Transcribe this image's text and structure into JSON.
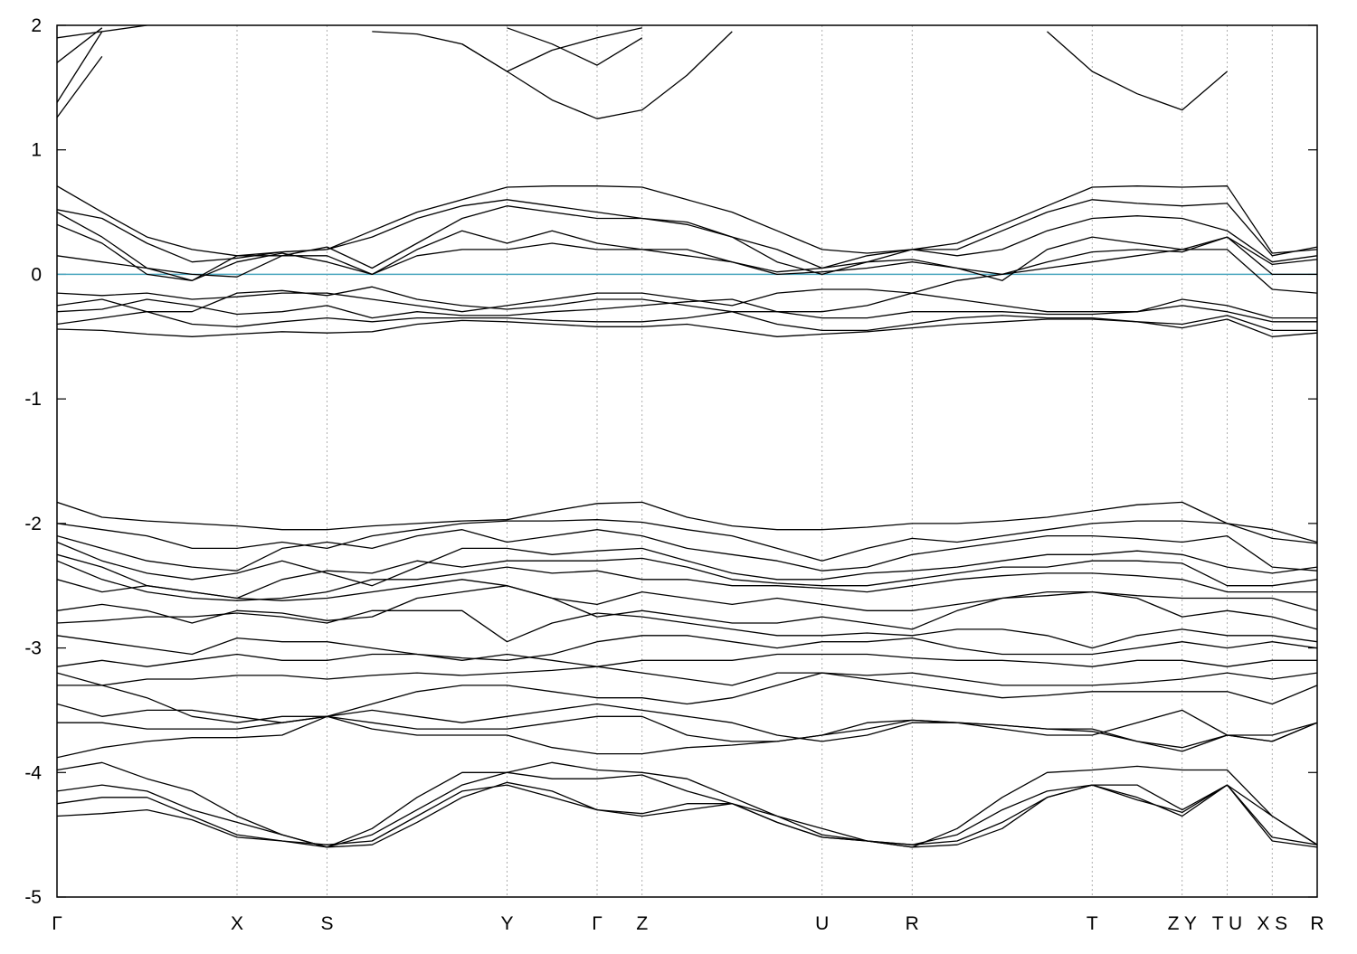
{
  "chart_data": {
    "type": "line",
    "x": [
      0,
      0.5,
      1,
      1.5,
      2,
      2.5,
      3,
      3.5,
      4,
      4.5,
      5,
      5.5,
      6,
      6.5,
      7,
      7.5,
      8,
      8.5,
      9,
      9.5,
      10,
      10.5,
      11,
      11.5,
      12,
      12.5,
      13,
      13.5,
      14
    ],
    "xlim": [
      0,
      14
    ],
    "xticks": [
      {
        "value": 0,
        "label": "Γ"
      },
      {
        "value": 2,
        "label": "X"
      },
      {
        "value": 3,
        "label": "S"
      },
      {
        "value": 5,
        "label": "Y"
      },
      {
        "value": 6,
        "label": "Γ"
      },
      {
        "value": 6.5,
        "label": "Z"
      },
      {
        "value": 8.5,
        "label": "U"
      },
      {
        "value": 9.5,
        "label": "R"
      },
      {
        "value": 11.5,
        "label": "T"
      },
      {
        "value": 12.5,
        "label": "Z Y"
      },
      {
        "value": 13,
        "label": "T U"
      },
      {
        "value": 13.5,
        "label": "X S"
      },
      {
        "value": 14,
        "label": "R"
      }
    ],
    "ylim": [
      -5,
      2
    ],
    "yticks": [
      -5,
      -4,
      -3,
      -2,
      -1,
      0,
      1,
      2
    ],
    "grid": true,
    "color": "#000000",
    "reference_line": {
      "value": 0,
      "color": "#4aa6bf"
    },
    "series": [
      {
        "values": [
          1.26,
          1.75,
          null,
          null,
          null,
          null,
          null,
          null,
          null,
          1.85,
          1.63,
          1.4,
          1.25,
          1.32,
          1.6,
          1.95,
          null,
          null,
          null,
          null,
          null,
          null,
          1.95,
          1.63,
          1.45,
          1.32,
          1.63,
          null,
          null
        ]
      },
      {
        "values": [
          1.38,
          1.95,
          null,
          null,
          null,
          null,
          null,
          1.95,
          1.93,
          1.85,
          1.63,
          1.8,
          1.9,
          1.98,
          null,
          null,
          null,
          null,
          null,
          null,
          null,
          null,
          null,
          null,
          null,
          null,
          null,
          null,
          null
        ]
      },
      {
        "values": [
          1.7,
          1.98,
          null,
          null,
          null,
          null,
          null,
          null,
          null,
          null,
          1.98,
          1.85,
          1.68,
          1.9,
          null,
          null,
          null,
          null,
          null,
          null,
          null,
          null,
          null,
          null,
          null,
          null,
          null,
          null,
          null
        ]
      },
      {
        "values": [
          1.9,
          1.95,
          2,
          null,
          null,
          null,
          null,
          null,
          null,
          null,
          null,
          null,
          null,
          null,
          null,
          null,
          null,
          null,
          null,
          null,
          null,
          null,
          null,
          null,
          null,
          null,
          null,
          null,
          null
        ]
      },
      {
        "values": [
          0.71,
          0.5,
          0.3,
          0.2,
          0.15,
          0.18,
          0.2,
          0.35,
          0.5,
          0.6,
          0.7,
          0.71,
          0.71,
          0.7,
          0.6,
          0.5,
          0.35,
          0.2,
          0.17,
          0.2,
          0.25,
          0.4,
          0.55,
          0.7,
          0.71,
          0.7,
          0.71,
          0.17,
          0.2
        ]
      },
      {
        "values": [
          0.52,
          0.45,
          0.25,
          0.1,
          0.13,
          0.18,
          0.2,
          0.3,
          0.45,
          0.55,
          0.6,
          0.55,
          0.5,
          0.45,
          0.4,
          0.3,
          0.2,
          0.05,
          0.15,
          0.2,
          0.2,
          0.35,
          0.5,
          0.6,
          0.57,
          0.55,
          0.57,
          0.15,
          0.22
        ]
      },
      {
        "values": [
          0.5,
          0.3,
          0.05,
          -0.05,
          0.15,
          0.15,
          0.22,
          0.05,
          0.25,
          0.45,
          0.55,
          0.5,
          0.45,
          0.45,
          0.42,
          0.3,
          0.1,
          0,
          0.1,
          0.2,
          0.15,
          0.2,
          0.35,
          0.45,
          0.47,
          0.45,
          0.35,
          0.1,
          0.15
        ]
      },
      {
        "values": [
          0.4,
          0.25,
          0,
          -0.05,
          0.1,
          0.17,
          0.1,
          0,
          0.2,
          0.35,
          0.25,
          0.35,
          0.25,
          0.2,
          0.2,
          0.1,
          0.02,
          0.05,
          0.1,
          0.12,
          0.05,
          -0.05,
          0.2,
          0.3,
          0.25,
          0.2,
          0.3,
          0.08,
          0.12
        ]
      },
      {
        "values": [
          0.15,
          0.1,
          0.05,
          0,
          -0.02,
          0.15,
          0.15,
          0,
          0.15,
          0.2,
          0.2,
          0.25,
          0.2,
          0.2,
          0.15,
          0.1,
          0,
          0.02,
          0.05,
          0.1,
          0.05,
          0,
          0.1,
          0.18,
          0.2,
          0.18,
          0.3,
          0,
          0
        ]
      },
      {
        "values": [
          -0.15,
          -0.17,
          -0.15,
          -0.2,
          -0.18,
          -0.15,
          -0.15,
          -0.2,
          -0.25,
          -0.3,
          -0.25,
          -0.2,
          -0.15,
          -0.15,
          -0.2,
          -0.25,
          -0.15,
          -0.12,
          -0.12,
          -0.15,
          -0.05,
          0,
          0.05,
          0.1,
          0.15,
          0.2,
          0.2,
          -0.12,
          -0.15
        ]
      },
      {
        "values": [
          -0.25,
          -0.2,
          -0.3,
          -0.3,
          -0.15,
          -0.13,
          -0.17,
          -0.1,
          -0.2,
          -0.25,
          -0.28,
          -0.25,
          -0.2,
          -0.2,
          -0.25,
          -0.3,
          -0.3,
          -0.3,
          -0.25,
          -0.15,
          -0.2,
          -0.25,
          -0.3,
          -0.3,
          -0.3,
          -0.2,
          -0.25,
          -0.35,
          -0.35
        ]
      },
      {
        "values": [
          -0.3,
          -0.28,
          -0.2,
          -0.25,
          -0.32,
          -0.3,
          -0.25,
          -0.35,
          -0.3,
          -0.33,
          -0.33,
          -0.3,
          -0.28,
          -0.25,
          -0.22,
          -0.2,
          -0.3,
          -0.35,
          -0.35,
          -0.3,
          -0.3,
          -0.3,
          -0.32,
          -0.32,
          -0.3,
          -0.25,
          -0.3,
          -0.38,
          -0.38
        ]
      },
      {
        "values": [
          -0.4,
          -0.35,
          -0.3,
          -0.4,
          -0.42,
          -0.38,
          -0.35,
          -0.38,
          -0.35,
          -0.35,
          -0.35,
          -0.37,
          -0.38,
          -0.38,
          -0.35,
          -0.3,
          -0.4,
          -0.45,
          -0.45,
          -0.4,
          -0.35,
          -0.33,
          -0.35,
          -0.35,
          -0.38,
          -0.4,
          -0.33,
          -0.45,
          -0.45
        ]
      },
      {
        "values": [
          -0.44,
          -0.45,
          -0.48,
          -0.5,
          -0.48,
          -0.46,
          -0.47,
          -0.46,
          -0.4,
          -0.37,
          -0.38,
          -0.4,
          -0.42,
          -0.42,
          -0.4,
          -0.45,
          -0.5,
          -0.48,
          -0.46,
          -0.43,
          -0.4,
          -0.38,
          -0.36,
          -0.36,
          -0.38,
          -0.43,
          -0.36,
          -0.5,
          -0.47
        ]
      },
      {
        "values": [
          -1.83,
          -1.95,
          -1.98,
          -2,
          -2.02,
          -2.05,
          -2.05,
          -2.02,
          -2,
          -1.98,
          -1.97,
          -1.9,
          -1.84,
          -1.83,
          -1.95,
          -2.02,
          -2.05,
          -2.05,
          -2.03,
          -2,
          -2,
          -1.98,
          -1.95,
          -1.9,
          -1.85,
          -1.83,
          -2,
          -2.05,
          -2.15
        ]
      },
      {
        "values": [
          -2,
          -2.05,
          -2.1,
          -2.2,
          -2.2,
          -2.15,
          -2.2,
          -2.1,
          -2.05,
          -2,
          -1.98,
          -1.98,
          -1.97,
          -1.99,
          -2.05,
          -2.1,
          -2.2,
          -2.3,
          -2.2,
          -2.12,
          -2.15,
          -2.1,
          -2.05,
          -2,
          -1.98,
          -1.98,
          -2,
          -2.12,
          -2.16
        ]
      },
      {
        "values": [
          -2.1,
          -2.2,
          -2.3,
          -2.35,
          -2.38,
          -2.2,
          -2.15,
          -2.2,
          -2.1,
          -2.05,
          -2.15,
          -2.1,
          -2.05,
          -2.1,
          -2.2,
          -2.25,
          -2.3,
          -2.38,
          -2.35,
          -2.25,
          -2.2,
          -2.15,
          -2.1,
          -2.1,
          -2.12,
          -2.15,
          -2.1,
          -2.35,
          -2.38
        ]
      },
      {
        "values": [
          -2.15,
          -2.3,
          -2.4,
          -2.45,
          -2.4,
          -2.3,
          -2.4,
          -2.5,
          -2.35,
          -2.2,
          -2.2,
          -2.25,
          -2.22,
          -2.2,
          -2.3,
          -2.4,
          -2.45,
          -2.45,
          -2.4,
          -2.38,
          -2.35,
          -2.3,
          -2.25,
          -2.25,
          -2.22,
          -2.25,
          -2.35,
          -2.4,
          -2.35
        ]
      },
      {
        "values": [
          -2.25,
          -2.35,
          -2.5,
          -2.55,
          -2.6,
          -2.45,
          -2.38,
          -2.4,
          -2.3,
          -2.35,
          -2.3,
          -2.3,
          -2.3,
          -2.28,
          -2.35,
          -2.45,
          -2.48,
          -2.5,
          -2.5,
          -2.45,
          -2.4,
          -2.35,
          -2.35,
          -2.3,
          -2.3,
          -2.32,
          -2.5,
          -2.5,
          -2.45
        ]
      },
      {
        "values": [
          -2.3,
          -2.45,
          -2.55,
          -2.6,
          -2.62,
          -2.6,
          -2.55,
          -2.45,
          -2.45,
          -2.4,
          -2.35,
          -2.4,
          -2.38,
          -2.45,
          -2.45,
          -2.5,
          -2.5,
          -2.52,
          -2.55,
          -2.5,
          -2.45,
          -2.42,
          -2.4,
          -2.4,
          -2.42,
          -2.45,
          -2.55,
          -2.55,
          -2.55
        ]
      },
      {
        "values": [
          -2.45,
          -2.55,
          -2.5,
          -2.55,
          -2.6,
          -2.62,
          -2.6,
          -2.55,
          -2.5,
          -2.45,
          -2.5,
          -2.6,
          -2.65,
          -2.55,
          -2.6,
          -2.65,
          -2.6,
          -2.65,
          -2.7,
          -2.7,
          -2.65,
          -2.6,
          -2.55,
          -2.55,
          -2.58,
          -2.6,
          -2.6,
          -2.6,
          -2.7
        ]
      },
      {
        "values": [
          -2.7,
          -2.65,
          -2.7,
          -2.8,
          -2.7,
          -2.72,
          -2.78,
          -2.75,
          -2.6,
          -2.55,
          -2.5,
          -2.6,
          -2.75,
          -2.7,
          -2.75,
          -2.8,
          -2.8,
          -2.75,
          -2.8,
          -2.85,
          -2.7,
          -2.6,
          -2.58,
          -2.55,
          -2.6,
          -2.75,
          -2.7,
          -2.75,
          -2.85
        ]
      },
      {
        "values": [
          -2.8,
          -2.78,
          -2.75,
          -2.75,
          -2.72,
          -2.75,
          -2.8,
          -2.7,
          -2.7,
          -2.7,
          -2.95,
          -2.8,
          -2.72,
          -2.75,
          -2.8,
          -2.85,
          -2.9,
          -2.9,
          -2.88,
          -2.9,
          -2.85,
          -2.85,
          -2.9,
          -3,
          -2.9,
          -2.85,
          -2.9,
          -2.9,
          -2.95
        ]
      },
      {
        "values": [
          -2.9,
          -2.95,
          -3,
          -3.05,
          -2.92,
          -2.95,
          -2.95,
          -3,
          -3.05,
          -3.08,
          -3.1,
          -3.05,
          -2.95,
          -2.9,
          -2.9,
          -2.95,
          -3,
          -2.95,
          -2.95,
          -2.92,
          -3,
          -3.05,
          -3.05,
          -3.05,
          -3,
          -2.95,
          -3,
          -2.95,
          -3
        ]
      },
      {
        "values": [
          -3.15,
          -3.1,
          -3.15,
          -3.1,
          -3.05,
          -3.1,
          -3.1,
          -3.05,
          -3.05,
          -3.1,
          -3.05,
          -3.1,
          -3.15,
          -3.1,
          -3.1,
          -3.1,
          -3.05,
          -3.05,
          -3.05,
          -3.08,
          -3.1,
          -3.1,
          -3.12,
          -3.15,
          -3.1,
          -3.1,
          -3.15,
          -3.1,
          -3.1
        ]
      },
      {
        "values": [
          -3.2,
          -3.3,
          -3.25,
          -3.25,
          -3.22,
          -3.22,
          -3.25,
          -3.22,
          -3.2,
          -3.22,
          -3.2,
          -3.18,
          -3.15,
          -3.2,
          -3.25,
          -3.3,
          -3.2,
          -3.2,
          -3.22,
          -3.2,
          -3.25,
          -3.3,
          -3.3,
          -3.3,
          -3.28,
          -3.25,
          -3.2,
          -3.25,
          -3.2
        ]
      },
      {
        "values": [
          -3.3,
          -3.3,
          -3.4,
          -3.55,
          -3.6,
          -3.55,
          -3.55,
          -3.45,
          -3.35,
          -3.3,
          -3.3,
          -3.35,
          -3.4,
          -3.4,
          -3.45,
          -3.4,
          -3.3,
          -3.2,
          -3.25,
          -3.3,
          -3.35,
          -3.4,
          -3.38,
          -3.35,
          -3.35,
          -3.35,
          -3.35,
          -3.45,
          -3.3
        ]
      },
      {
        "values": [
          -3.45,
          -3.55,
          -3.5,
          -3.5,
          -3.55,
          -3.6,
          -3.55,
          -3.5,
          -3.55,
          -3.6,
          -3.55,
          -3.5,
          -3.45,
          -3.5,
          -3.55,
          -3.6,
          -3.7,
          -3.75,
          -3.7,
          -3.6,
          -3.6,
          -3.65,
          -3.7,
          -3.7,
          -3.6,
          -3.5,
          -3.7,
          -3.7,
          -3.6
        ]
      },
      {
        "values": [
          -3.6,
          -3.6,
          -3.65,
          -3.65,
          -3.65,
          -3.6,
          -3.55,
          -3.6,
          -3.65,
          -3.65,
          -3.65,
          -3.6,
          -3.55,
          -3.55,
          -3.7,
          -3.75,
          -3.75,
          -3.7,
          -3.65,
          -3.58,
          -3.6,
          -3.62,
          -3.65,
          -3.65,
          -3.75,
          -3.8,
          -3.7,
          -3.75,
          -3.6
        ]
      },
      {
        "values": [
          -3.88,
          -3.8,
          -3.75,
          -3.72,
          -3.72,
          -3.7,
          -3.55,
          -3.65,
          -3.7,
          -3.7,
          -3.7,
          -3.8,
          -3.85,
          -3.85,
          -3.8,
          -3.78,
          -3.75,
          -3.7,
          -3.6,
          -3.58,
          -3.6,
          -3.62,
          -3.65,
          -3.67,
          -3.75,
          -3.83,
          -3.7,
          -3.75,
          -3.6
        ]
      },
      {
        "values": [
          -3.98,
          -3.92,
          -4.05,
          -4.15,
          -4.35,
          -4.5,
          -4.6,
          -4.45,
          -4.2,
          -4,
          -4,
          -3.92,
          -3.98,
          -4,
          -4.05,
          -4.2,
          -4.35,
          -4.45,
          -4.55,
          -4.6,
          -4.45,
          -4.2,
          -4,
          -3.98,
          -3.95,
          -3.98,
          -3.98,
          -4.35,
          -4.58
        ]
      },
      {
        "values": [
          -4.15,
          -4.1,
          -4.15,
          -4.3,
          -4.4,
          -4.5,
          -4.6,
          -4.5,
          -4.3,
          -4.1,
          -4,
          -4.05,
          -4.05,
          -4.02,
          -4.15,
          -4.25,
          -4.35,
          -4.5,
          -4.55,
          -4.58,
          -4.5,
          -4.3,
          -4.15,
          -4.1,
          -4.1,
          -4.3,
          -4.1,
          -4.35,
          -4.58
        ]
      },
      {
        "values": [
          -4.25,
          -4.2,
          -4.2,
          -4.35,
          -4.5,
          -4.55,
          -4.58,
          -4.55,
          -4.35,
          -4.15,
          -4.1,
          -4.2,
          -4.3,
          -4.33,
          -4.25,
          -4.25,
          -4.4,
          -4.52,
          -4.55,
          -4.58,
          -4.55,
          -4.4,
          -4.2,
          -4.1,
          -4.2,
          -4.35,
          -4.1,
          -4.52,
          -4.58
        ]
      },
      {
        "values": [
          -4.35,
          -4.33,
          -4.3,
          -4.38,
          -4.52,
          -4.55,
          -4.6,
          -4.58,
          -4.4,
          -4.2,
          -4.08,
          -4.15,
          -4.3,
          -4.35,
          -4.3,
          -4.25,
          -4.4,
          -4.52,
          -4.55,
          -4.6,
          -4.58,
          -4.45,
          -4.2,
          -4.1,
          -4.22,
          -4.32,
          -4.1,
          -4.55,
          -4.6
        ]
      }
    ]
  }
}
